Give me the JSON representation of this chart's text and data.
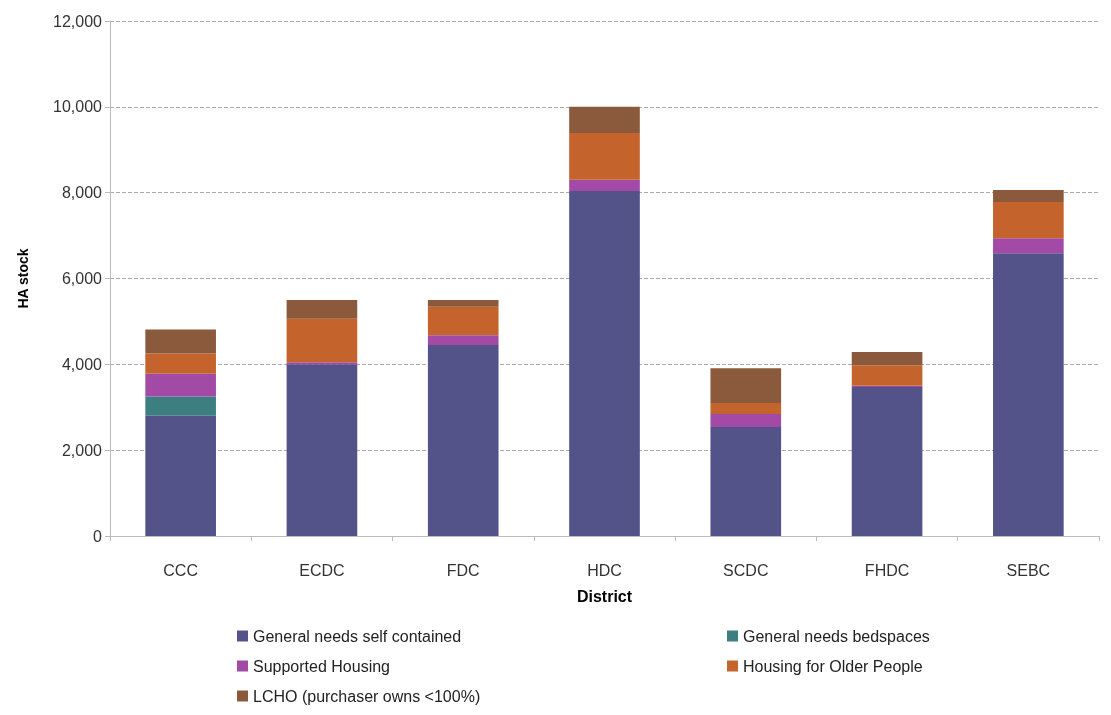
{
  "chart_data": {
    "type": "bar",
    "stacked": true,
    "xlabel": "District",
    "ylabel": "HA stock",
    "categories": [
      "CCC",
      "ECDC",
      "FDC",
      "HDC",
      "SCDC",
      "FHDC",
      "SEBC"
    ],
    "series": [
      {
        "name": "General needs self contained",
        "color": "#535289",
        "values": [
          2800,
          4000,
          4450,
          8040,
          2540,
          3470,
          6590
        ]
      },
      {
        "name": "General needs bedspaces",
        "color": "#3d7f80",
        "values": [
          450,
          0,
          0,
          0,
          0,
          0,
          0
        ]
      },
      {
        "name": "Supported Housing",
        "color": "#a24aa6",
        "values": [
          530,
          50,
          230,
          260,
          300,
          30,
          350
        ]
      },
      {
        "name": "Housing for Older People",
        "color": "#c4642c",
        "values": [
          470,
          1010,
          660,
          1090,
          260,
          480,
          840
        ]
      },
      {
        "name": "LCHO (purchaser owns <100%)",
        "color": "#8b5a3c",
        "values": [
          560,
          440,
          160,
          610,
          810,
          310,
          280
        ]
      }
    ],
    "ylim": [
      0,
      12000
    ],
    "yticks": [
      0,
      {
        "value": 2000,
        "label": "2,000"
      },
      {
        "value": 4000,
        "label": "4,000"
      },
      {
        "value": 6000,
        "label": "6,000"
      },
      {
        "value": 8000,
        "label": "8,000"
      },
      {
        "value": 10000,
        "label": "10,000"
      },
      {
        "value": 12000,
        "label": "12,000"
      }
    ],
    "grid": "y",
    "legend": "bottom"
  }
}
